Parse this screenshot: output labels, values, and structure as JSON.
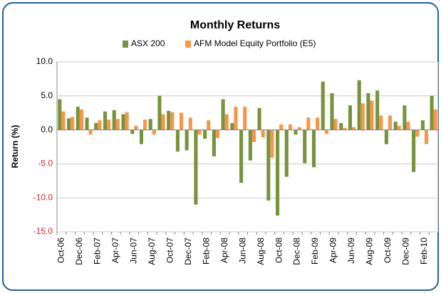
{
  "chart_data": {
    "type": "bar",
    "title": "Monthly Returns",
    "y_label": "Return (%)",
    "categories": [
      "Oct-06",
      null,
      "Dec-06",
      null,
      "Feb-07",
      null,
      "Apr-07",
      null,
      "Jun-07",
      null,
      "Aug-07",
      null,
      "Oct-07",
      null,
      "Dec-07",
      null,
      "Feb-08",
      null,
      "Apr-08",
      null,
      "Jun-08",
      null,
      "Aug-08",
      null,
      "Oct-08",
      null,
      "Dec-08",
      null,
      "Feb-09",
      null,
      "Apr-09",
      null,
      "Jun-09",
      null,
      "Aug-09",
      null,
      "Oct-09",
      null,
      "Dec-09",
      null,
      "Feb-10",
      null
    ],
    "series": [
      {
        "name": "ASX 200",
        "color": "#77933c",
        "values": [
          4.5,
          1.7,
          3.4,
          1.8,
          1.0,
          2.7,
          2.9,
          2.3,
          -0.6,
          -2.1,
          1.6,
          5.0,
          2.8,
          -3.2,
          -3.0,
          -11.0,
          -1.3,
          -3.9,
          4.5,
          1.0,
          -7.8,
          -4.5,
          3.2,
          -10.4,
          -12.6,
          -6.9,
          -0.7,
          -4.9,
          -5.5,
          7.1,
          5.4,
          1.0,
          3.6,
          7.3,
          5.4,
          5.8,
          -2.1,
          1.2,
          3.6,
          -6.2,
          1.4,
          5.0
        ]
      },
      {
        "name": "AFM Model Equity Portfolio (E5)",
        "color": "#f79646",
        "values": [
          2.7,
          1.9,
          3.0,
          -0.7,
          1.4,
          1.5,
          1.6,
          2.6,
          0.6,
          1.5,
          -0.7,
          2.3,
          2.6,
          2.5,
          1.8,
          -0.7,
          1.4,
          -1.2,
          2.3,
          3.4,
          3.4,
          -1.8,
          -1.1,
          -4.1,
          0.8,
          0.8,
          0.4,
          1.8,
          1.8,
          -0.6,
          1.6,
          0.3,
          0.4,
          3.9,
          4.3,
          2.1,
          2.1,
          0.6,
          1.2,
          -1.0,
          -2.1,
          3.0
        ]
      }
    ],
    "ylim": [
      -15,
      10
    ],
    "yticks": [
      {
        "value": -15,
        "label": "-15.0"
      },
      {
        "value": -10,
        "label": "-10.0"
      },
      {
        "value": -5,
        "label": "-5.0"
      },
      {
        "value": 0,
        "label": "0.0"
      },
      {
        "value": 5,
        "label": "5.0"
      },
      {
        "value": 10,
        "label": "10.0"
      }
    ],
    "grid": true,
    "legend": "top"
  }
}
